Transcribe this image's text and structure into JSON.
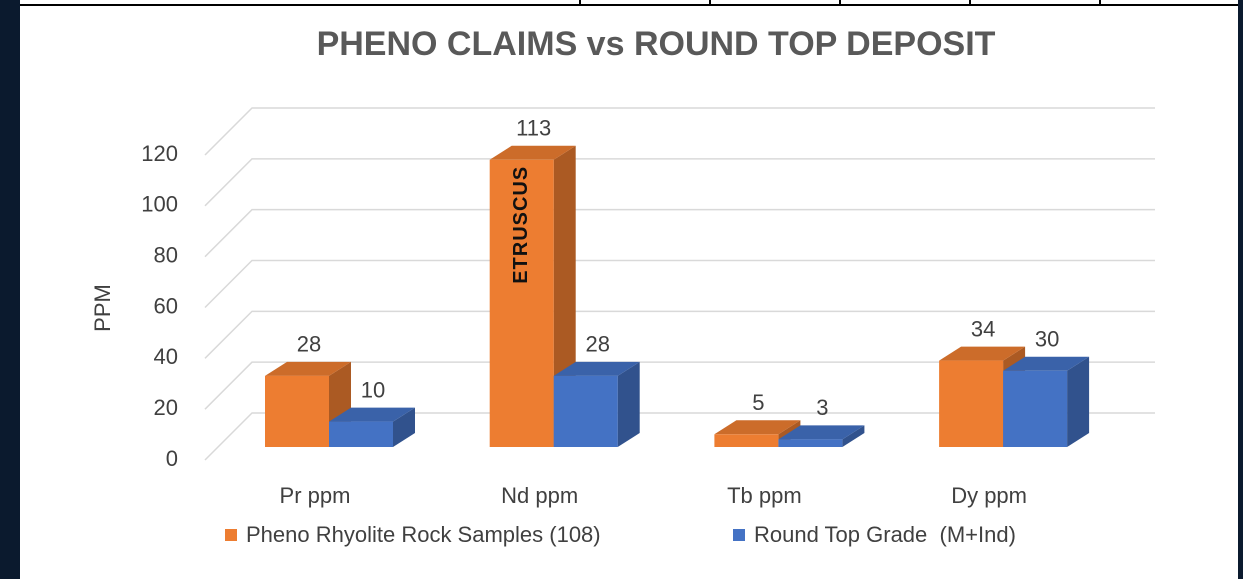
{
  "chart_data": {
    "type": "bar3d",
    "title": "PHENO CLAIMS vs ROUND TOP DEPOSIT",
    "y_label": "PPM",
    "watermark": "ETRUSCUS",
    "categories": [
      "Pr ppm",
      "Nd ppm",
      "Tb ppm",
      "Dy ppm"
    ],
    "series": [
      {
        "name": "Pheno Rhyolite Rock Samples (108)",
        "color": "#ED7D31",
        "values": [
          28,
          113,
          5,
          34
        ]
      },
      {
        "name": "Round Top Grade  (M+Ind)",
        "color": "#4472C4",
        "values": [
          10,
          28,
          3,
          30
        ]
      }
    ],
    "ylim": [
      0,
      120
    ],
    "yticks": [
      0,
      20,
      40,
      60,
      80,
      100,
      120
    ],
    "grid": true,
    "legend": "bottom"
  }
}
